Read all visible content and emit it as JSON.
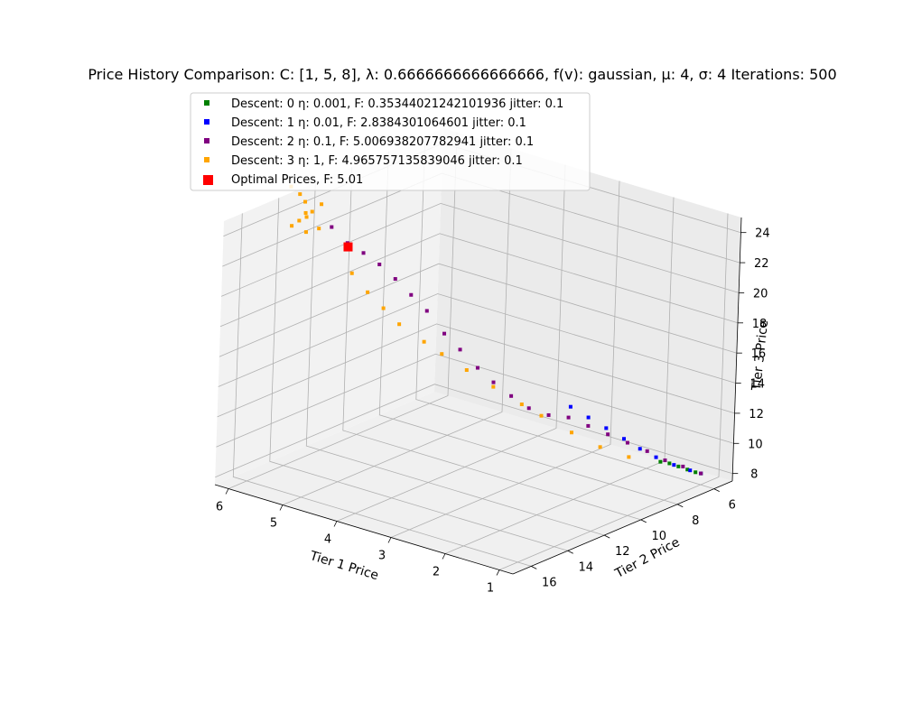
{
  "chart_data": {
    "type": "scatter",
    "projection": "3d",
    "title": "Price History Comparison: C: [1, 5, 8], λ: 0.6666666666666666, f(v): gaussian, μ: 4, σ: 4 Iterations: 500",
    "xlabel": "Tier 1 Price",
    "ylabel": "Tier 2 Price",
    "zlabel": "Tier 3 Price",
    "xlim": [
      0.75,
      6.25
    ],
    "ylim": [
      5.0,
      17.0
    ],
    "zlim": [
      7.5,
      25.0
    ],
    "x_ticks": [
      "1",
      "2",
      "3",
      "4",
      "5",
      "6"
    ],
    "y_ticks": [
      "6",
      "8",
      "10",
      "12",
      "14",
      "16"
    ],
    "z_ticks": [
      "8",
      "10",
      "12",
      "14",
      "16",
      "18",
      "20",
      "22",
      "24"
    ],
    "grid": true,
    "legend_position": "top-left",
    "series": [
      {
        "name": "Descent: 0 η: 0.001, F: 0.35344021242101936 jitter: 0.1",
        "color": "#008000",
        "marker": "square",
        "points": [
          [
            1.45,
            6.9,
            9.0
          ],
          [
            1.35,
            6.7,
            8.9
          ],
          [
            1.25,
            6.5,
            8.7
          ],
          [
            1.15,
            6.3,
            8.5
          ],
          [
            1.05,
            6.15,
            8.35
          ],
          [
            1.0,
            6.0,
            8.25
          ]
        ]
      },
      {
        "name": "Descent: 1 η: 0.01, F: 2.8384301064601 jitter: 0.1",
        "color": "#0000ff",
        "marker": "square",
        "points": [
          [
            2.5,
            8.8,
            12.5
          ],
          [
            2.3,
            8.4,
            11.8
          ],
          [
            2.1,
            8.0,
            11.1
          ],
          [
            1.9,
            7.6,
            10.4
          ],
          [
            1.7,
            7.3,
            9.8
          ],
          [
            1.5,
            7.0,
            9.3
          ],
          [
            1.3,
            6.6,
            8.8
          ],
          [
            1.1,
            6.3,
            8.5
          ],
          [
            1.0,
            6.0,
            8.25
          ]
        ]
      },
      {
        "name": "Descent: 2 η: 0.1, F: 5.006938207782941 jitter: 0.1",
        "color": "#800080",
        "marker": "square",
        "points": [
          [
            5.2,
            14.2,
            24.3
          ],
          [
            5.0,
            13.9,
            23.3
          ],
          [
            4.8,
            13.6,
            22.7
          ],
          [
            4.6,
            13.3,
            22.0
          ],
          [
            4.4,
            13.0,
            21.1
          ],
          [
            4.2,
            12.7,
            20.1
          ],
          [
            4.0,
            12.4,
            19.1
          ],
          [
            3.8,
            12.0,
            17.6
          ],
          [
            3.6,
            11.7,
            16.6
          ],
          [
            3.4,
            11.3,
            15.4
          ],
          [
            3.2,
            11.0,
            14.5
          ],
          [
            3.0,
            10.6,
            13.6
          ],
          [
            2.8,
            10.2,
            12.8
          ],
          [
            2.6,
            9.7,
            12.3
          ],
          [
            2.4,
            9.2,
            12.1
          ],
          [
            2.2,
            8.7,
            11.5
          ],
          [
            2.0,
            8.2,
            10.9
          ],
          [
            1.8,
            7.7,
            10.3
          ],
          [
            1.6,
            7.2,
            9.7
          ],
          [
            1.4,
            6.8,
            9.1
          ],
          [
            1.2,
            6.4,
            8.7
          ],
          [
            1.0,
            6.0,
            8.25
          ]
        ]
      },
      {
        "name": "Descent: 3 η: 1, F: 4.965757135839046 jitter: 0.1",
        "color": "#ffa500",
        "marker": "square",
        "points": [
          [
            5.8,
            14.7,
            26.6
          ],
          [
            5.7,
            14.5,
            26.1
          ],
          [
            5.6,
            14.5,
            25.7
          ],
          [
            5.5,
            14.7,
            24.9
          ],
          [
            5.6,
            14.8,
            24.6
          ],
          [
            5.7,
            14.9,
            24.2
          ],
          [
            5.5,
            14.7,
            23.9
          ],
          [
            5.4,
            14.2,
            25.6
          ],
          [
            5.5,
            14.4,
            25.1
          ],
          [
            5.65,
            14.3,
            24.8
          ],
          [
            5.3,
            14.6,
            24.3
          ],
          [
            4.9,
            13.9,
            21.4
          ],
          [
            4.7,
            13.6,
            20.2
          ],
          [
            4.5,
            13.3,
            19.2
          ],
          [
            4.3,
            13.0,
            18.2
          ],
          [
            4.0,
            12.5,
            17.1
          ],
          [
            3.8,
            12.1,
            16.3
          ],
          [
            3.5,
            11.6,
            15.3
          ],
          [
            3.2,
            11.0,
            14.2
          ],
          [
            2.9,
            10.3,
            13.0
          ],
          [
            2.7,
            9.8,
            12.2
          ],
          [
            2.4,
            9.0,
            11.0
          ],
          [
            2.1,
            8.3,
            10.0
          ],
          [
            1.8,
            7.6,
            9.3
          ]
        ]
      }
    ],
    "optimal": {
      "name": "Optimal Prices, F: 5.01",
      "color": "#ff0000",
      "marker": "square",
      "point": [
        4.97,
        13.95,
        23.1
      ]
    }
  }
}
